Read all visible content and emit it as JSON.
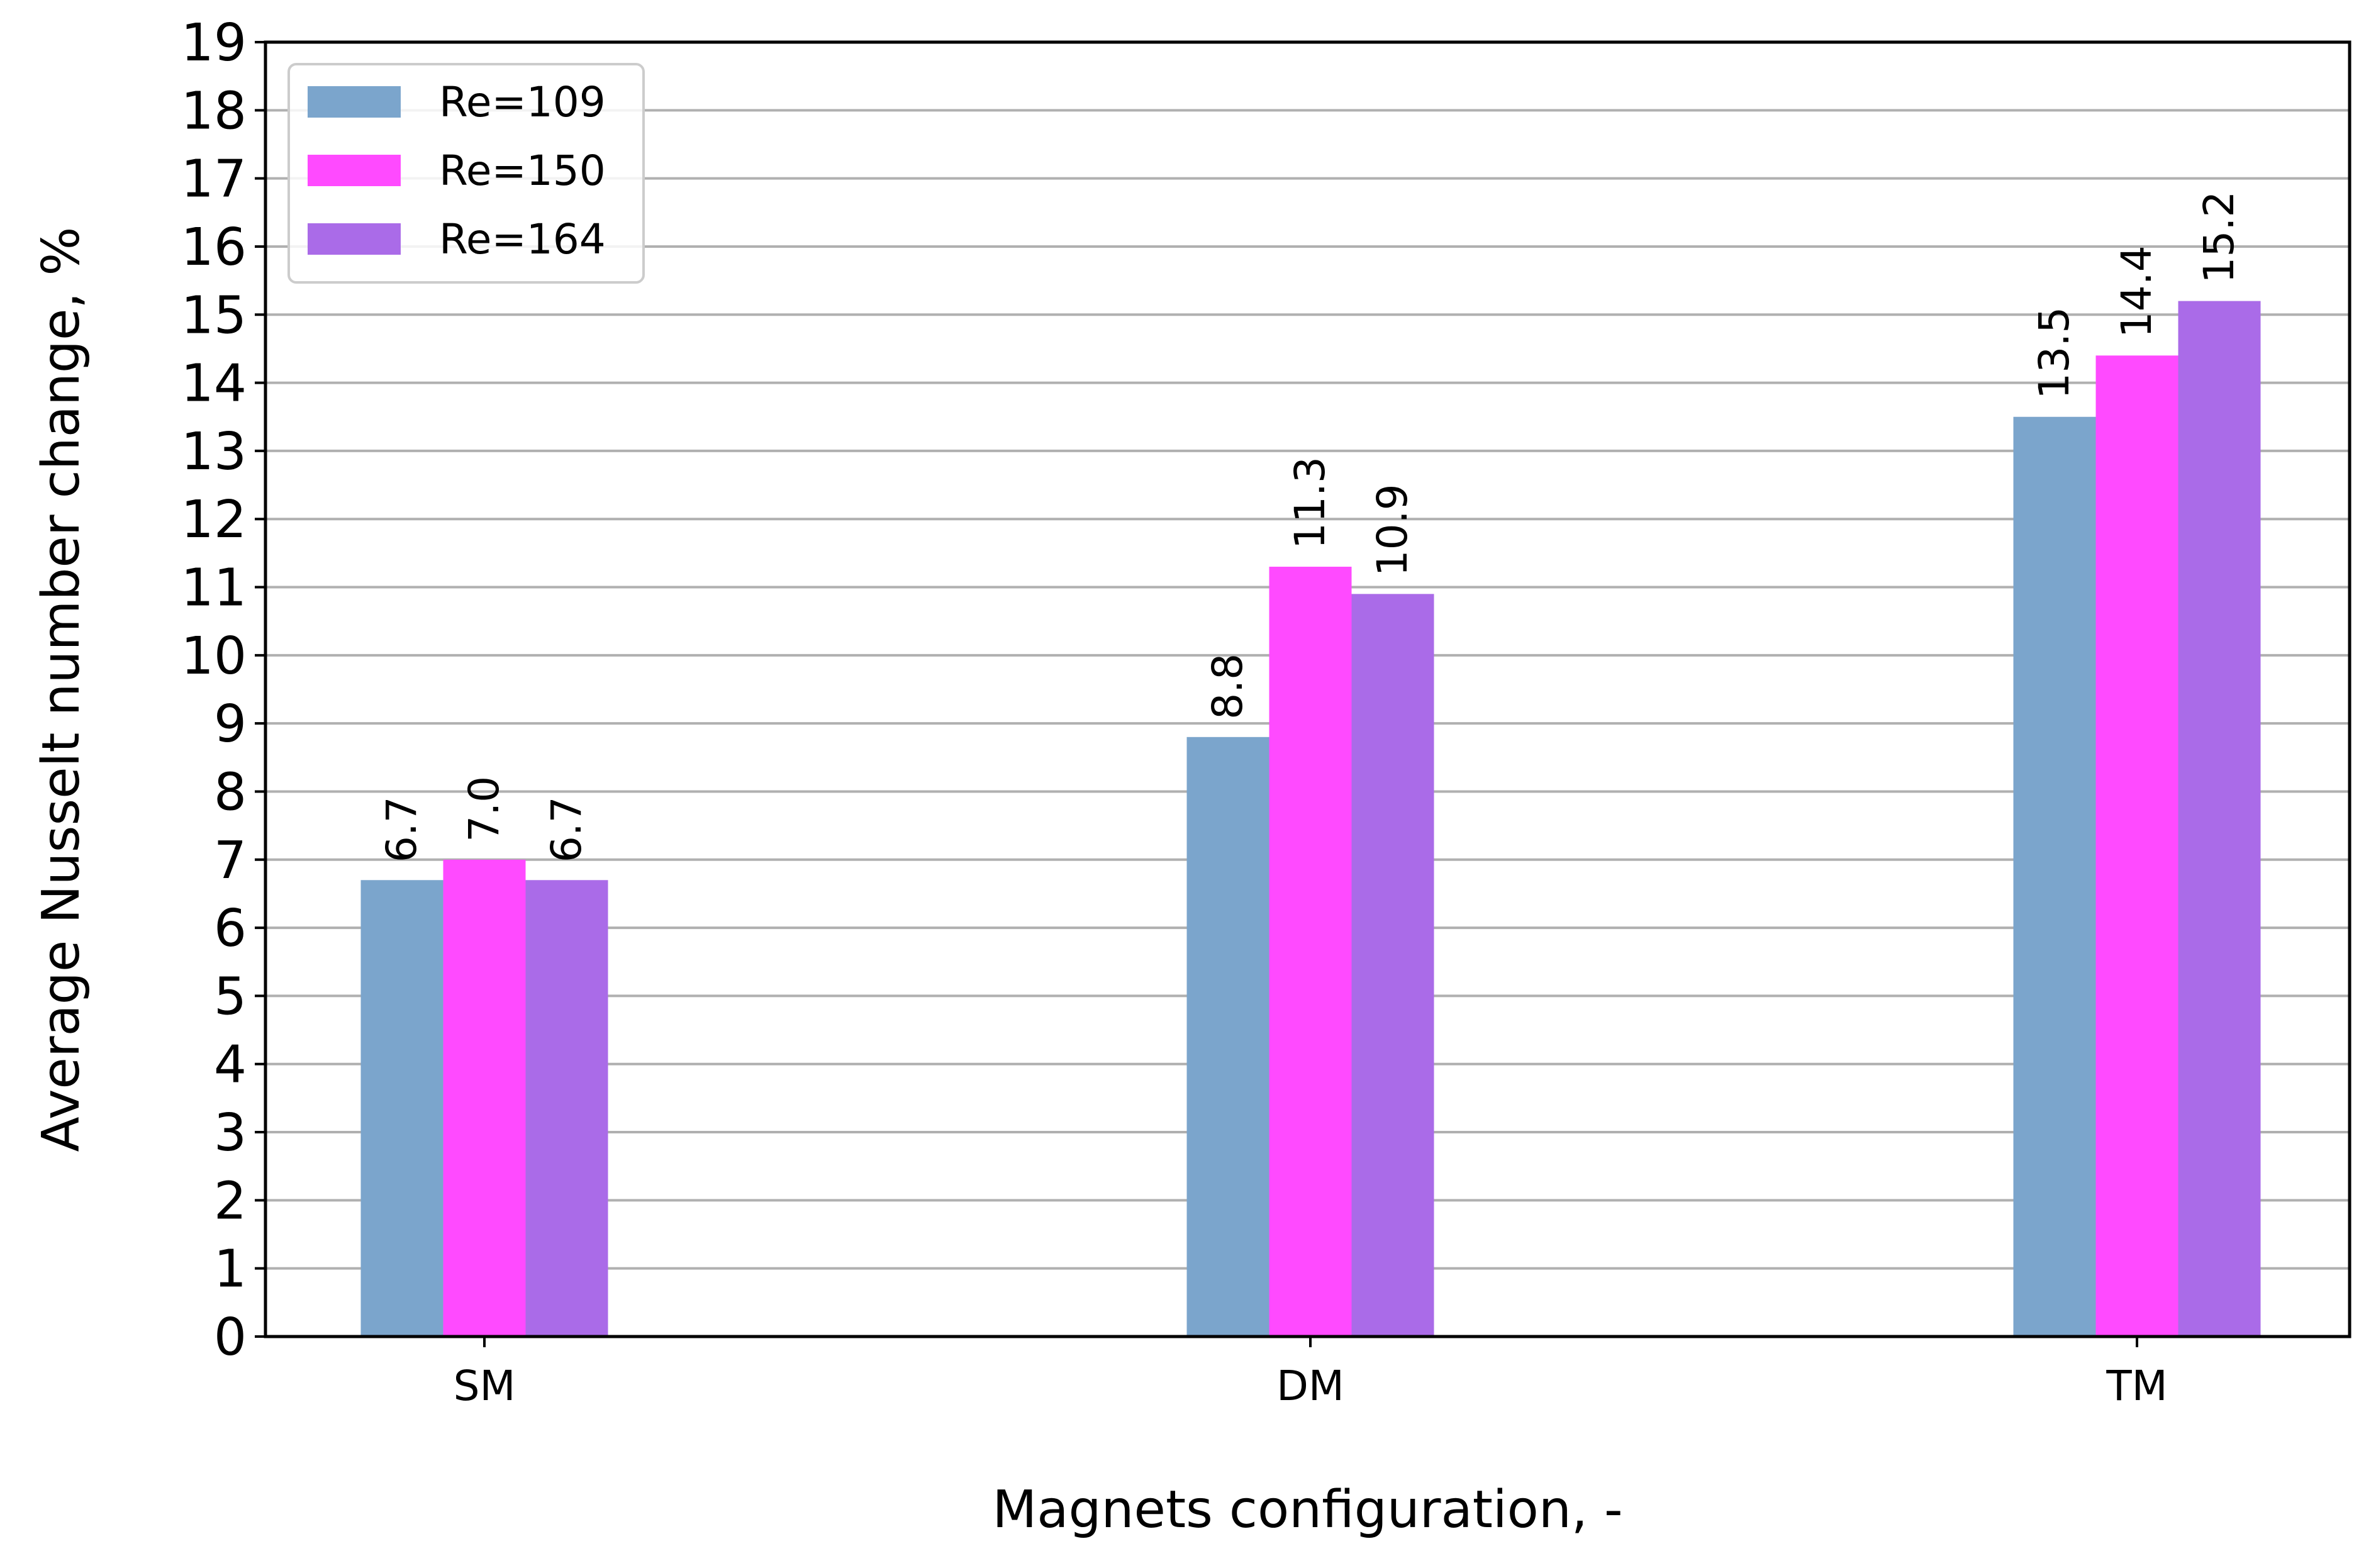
{
  "chart_data": {
    "type": "bar",
    "title": "",
    "xlabel": "Magnets configuration, -",
    "ylabel": "Average Nusselt number change, %",
    "ylim": [
      0,
      19
    ],
    "yticks": [
      "0",
      "1",
      "2",
      "3",
      "4",
      "5",
      "6",
      "7",
      "8",
      "9",
      "10",
      "11",
      "12",
      "13",
      "14",
      "15",
      "16",
      "17",
      "18",
      "19"
    ],
    "grid": "horizontal",
    "legend_position": "top-left",
    "categories": [
      "SM",
      "DM",
      "TM"
    ],
    "series": [
      {
        "name": "Re=109",
        "color": "#7ba5cc",
        "values": [
          6.7,
          8.8,
          13.5
        ],
        "labels": [
          "6.7",
          "8.8",
          "13.5"
        ]
      },
      {
        "name": "Re=150",
        "color": "#ff4aff",
        "values": [
          7.0,
          11.3,
          14.4
        ],
        "labels": [
          "7.0",
          "11.3",
          "14.4"
        ]
      },
      {
        "name": "Re=164",
        "color": "#aa6be8",
        "values": [
          6.7,
          10.9,
          15.2
        ],
        "labels": [
          "6.7",
          "10.9",
          "15.2"
        ]
      }
    ]
  }
}
